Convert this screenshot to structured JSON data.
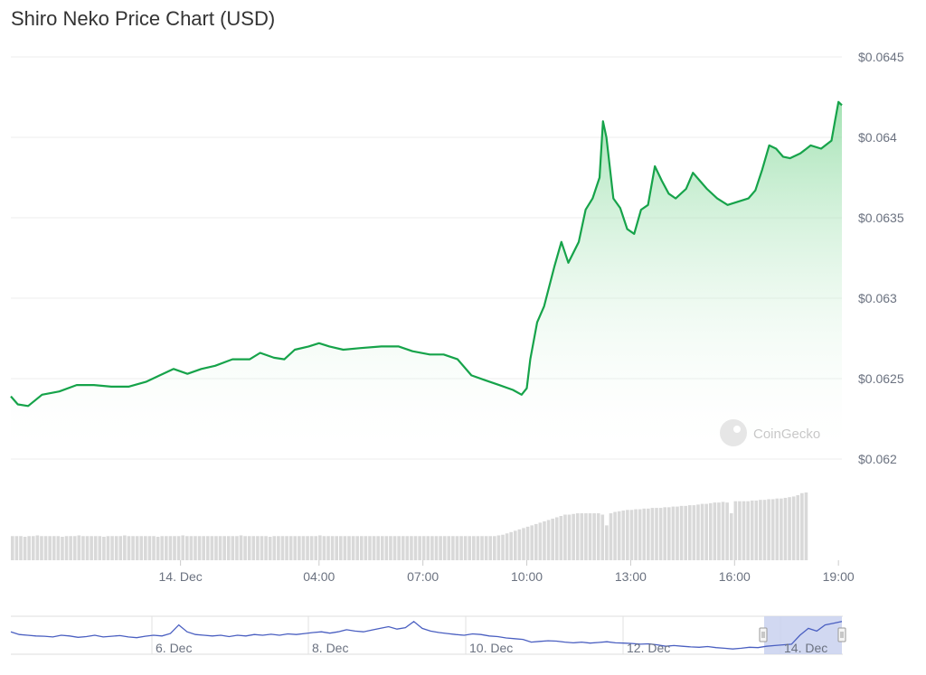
{
  "title": "Shiro Neko Price Chart (USD)",
  "watermark": "CoinGecko",
  "colors": {
    "line": "#16a34a",
    "area_top": "#86d99b",
    "grid": "#ececec",
    "volume": "#d9d9d9",
    "navigator_line": "#4a5fc1",
    "navigator_mask": "#c9d1ee"
  },
  "chart_data": [
    {
      "type": "area",
      "title": "Shiro Neko Price Chart (USD)",
      "x_unit": "hours from 14 Dec 00:00",
      "x_ticks": [
        {
          "x": 0,
          "label": "14. Dec"
        },
        {
          "x": 4,
          "label": "04:00"
        },
        {
          "x": 7,
          "label": "07:00"
        },
        {
          "x": 10,
          "label": "10:00"
        },
        {
          "x": 13,
          "label": "13:00"
        },
        {
          "x": 16,
          "label": "16:00"
        },
        {
          "x": 19,
          "label": "19:00"
        }
      ],
      "y_ticks": [
        "$0.062",
        "$0.0625",
        "$0.063",
        "$0.0635",
        "$0.064",
        "$0.0645"
      ],
      "ylim": [
        0.062,
        0.0645
      ],
      "xlim": [
        -4.9,
        19.1
      ],
      "grid": true,
      "legend": "none",
      "series": [
        {
          "values": [
            [
              -4.9,
              0.06239
            ],
            [
              -4.7,
              0.06234
            ],
            [
              -4.4,
              0.06233
            ],
            [
              -4.0,
              0.0624
            ],
            [
              -3.5,
              0.06242
            ],
            [
              -3.0,
              0.06246
            ],
            [
              -2.5,
              0.06246
            ],
            [
              -2.0,
              0.06245
            ],
            [
              -1.5,
              0.06245
            ],
            [
              -1.0,
              0.06248
            ],
            [
              -0.6,
              0.06252
            ],
            [
              -0.2,
              0.06256
            ],
            [
              0.2,
              0.06253
            ],
            [
              0.6,
              0.06256
            ],
            [
              1.0,
              0.06258
            ],
            [
              1.5,
              0.06262
            ],
            [
              2.0,
              0.06262
            ],
            [
              2.3,
              0.06266
            ],
            [
              2.7,
              0.06263
            ],
            [
              3.0,
              0.06262
            ],
            [
              3.3,
              0.06268
            ],
            [
              3.7,
              0.0627
            ],
            [
              4.0,
              0.06272
            ],
            [
              4.3,
              0.0627
            ],
            [
              4.7,
              0.06268
            ],
            [
              5.2,
              0.06269
            ],
            [
              5.8,
              0.0627
            ],
            [
              6.3,
              0.0627
            ],
            [
              6.7,
              0.06267
            ],
            [
              7.2,
              0.06265
            ],
            [
              7.6,
              0.06265
            ],
            [
              8.0,
              0.06262
            ],
            [
              8.4,
              0.06252
            ],
            [
              8.8,
              0.06249
            ],
            [
              9.2,
              0.06246
            ],
            [
              9.6,
              0.06243
            ],
            [
              9.85,
              0.0624
            ],
            [
              10.0,
              0.06244
            ],
            [
              10.1,
              0.06262
            ],
            [
              10.3,
              0.06285
            ],
            [
              10.5,
              0.06295
            ],
            [
              10.8,
              0.0632
            ],
            [
              11.0,
              0.06335
            ],
            [
              11.2,
              0.06322
            ],
            [
              11.5,
              0.06335
            ],
            [
              11.7,
              0.06355
            ],
            [
              11.9,
              0.06362
            ],
            [
              12.1,
              0.06375
            ],
            [
              12.2,
              0.0641
            ],
            [
              12.3,
              0.064
            ],
            [
              12.5,
              0.06362
            ],
            [
              12.7,
              0.06356
            ],
            [
              12.9,
              0.06343
            ],
            [
              13.1,
              0.0634
            ],
            [
              13.3,
              0.06355
            ],
            [
              13.5,
              0.06358
            ],
            [
              13.7,
              0.06382
            ],
            [
              13.9,
              0.06373
            ],
            [
              14.1,
              0.06365
            ],
            [
              14.3,
              0.06362
            ],
            [
              14.6,
              0.06368
            ],
            [
              14.8,
              0.06378
            ],
            [
              15.0,
              0.06373
            ],
            [
              15.2,
              0.06368
            ],
            [
              15.5,
              0.06362
            ],
            [
              15.8,
              0.06358
            ],
            [
              16.1,
              0.0636
            ],
            [
              16.4,
              0.06362
            ],
            [
              16.6,
              0.06367
            ],
            [
              16.8,
              0.0638
            ],
            [
              17.0,
              0.06395
            ],
            [
              17.2,
              0.06393
            ],
            [
              17.4,
              0.06388
            ],
            [
              17.6,
              0.06387
            ],
            [
              17.9,
              0.0639
            ],
            [
              18.2,
              0.06395
            ],
            [
              18.5,
              0.06393
            ],
            [
              18.8,
              0.06398
            ],
            [
              18.9,
              0.0641
            ],
            [
              19.0,
              0.06422
            ],
            [
              19.1,
              0.0642
            ]
          ]
        }
      ],
      "volume": {
        "x_start": -4.9,
        "x_step": 0.12,
        "values": [
          36,
          36,
          36,
          35,
          36,
          36,
          37,
          36,
          36,
          36,
          36,
          36,
          35,
          36,
          36,
          36,
          37,
          36,
          36,
          36,
          36,
          36,
          35,
          36,
          36,
          36,
          36,
          37,
          36,
          36,
          36,
          36,
          36,
          36,
          36,
          35,
          36,
          36,
          36,
          36,
          36,
          37,
          36,
          36,
          36,
          36,
          36,
          36,
          36,
          36,
          36,
          36,
          36,
          36,
          36,
          37,
          36,
          36,
          36,
          36,
          36,
          36,
          35,
          36,
          36,
          36,
          36,
          36,
          36,
          36,
          36,
          36,
          36,
          36,
          37,
          36,
          36,
          36,
          36,
          36,
          36,
          36,
          36,
          36,
          36,
          36,
          36,
          36,
          36,
          36,
          36,
          36,
          36,
          36,
          36,
          36,
          36,
          36,
          36,
          36,
          36,
          36,
          36,
          36,
          36,
          36,
          36,
          36,
          36,
          36,
          36,
          36,
          36,
          36,
          36,
          36,
          36,
          37,
          38,
          40,
          42,
          44,
          46,
          48,
          50,
          52,
          54,
          56,
          58,
          60,
          62,
          64,
          66,
          68,
          68,
          69,
          70,
          70,
          70,
          70,
          70,
          70,
          68,
          52,
          70,
          72,
          73,
          74,
          75,
          75,
          76,
          76,
          77,
          77,
          78,
          78,
          78,
          79,
          79,
          80,
          80,
          81,
          81,
          82,
          82,
          83,
          84,
          84,
          85,
          86,
          86,
          87,
          86,
          70,
          88,
          88,
          88,
          88,
          89,
          89,
          90,
          90,
          91,
          91,
          92,
          92,
          93,
          94,
          95,
          97,
          100,
          101
        ]
      }
    },
    {
      "type": "line",
      "role": "navigator",
      "x_ticks": [
        "6. Dec",
        "8. Dec",
        "10. Dec",
        "12. Dec",
        "14. Dec"
      ],
      "selection_start_x": "14. Dec",
      "values": [
        0.6,
        0.52,
        0.5,
        0.48,
        0.47,
        0.45,
        0.5,
        0.48,
        0.44,
        0.46,
        0.5,
        0.45,
        0.47,
        0.49,
        0.45,
        0.43,
        0.47,
        0.5,
        0.48,
        0.55,
        0.8,
        0.6,
        0.52,
        0.5,
        0.48,
        0.5,
        0.46,
        0.5,
        0.48,
        0.52,
        0.5,
        0.53,
        0.5,
        0.54,
        0.52,
        0.55,
        0.58,
        0.6,
        0.56,
        0.6,
        0.66,
        0.62,
        0.6,
        0.65,
        0.7,
        0.75,
        0.68,
        0.72,
        0.9,
        0.7,
        0.62,
        0.58,
        0.55,
        0.52,
        0.5,
        0.54,
        0.52,
        0.48,
        0.46,
        0.42,
        0.4,
        0.38,
        0.3,
        0.32,
        0.34,
        0.33,
        0.3,
        0.28,
        0.3,
        0.27,
        0.29,
        0.31,
        0.28,
        0.27,
        0.26,
        0.24,
        0.25,
        0.22,
        0.18,
        0.2,
        0.18,
        0.16,
        0.15,
        0.17,
        0.14,
        0.12,
        0.1,
        0.12,
        0.15,
        0.14,
        0.18,
        0.2,
        0.22,
        0.24,
        0.5,
        0.7,
        0.62,
        0.8,
        0.85,
        0.9
      ]
    }
  ]
}
